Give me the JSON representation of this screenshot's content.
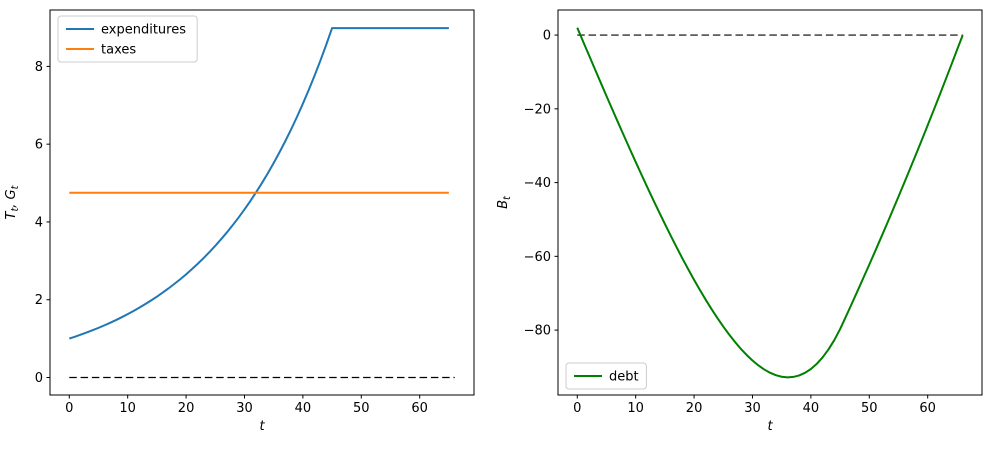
{
  "figure": {
    "background": "#ffffff",
    "plots": 2,
    "title": ""
  },
  "chart_data": [
    {
      "id": "left",
      "type": "line",
      "title": "",
      "xlabel": "t",
      "ylabel": "T_t, G_t",
      "xlabel_segments": [
        {
          "t": "t",
          "s": ""
        }
      ],
      "ylabel_segments": [
        {
          "t": "T",
          "s": "t"
        },
        {
          "t": ", ",
          "s": ""
        },
        {
          "t": "G",
          "s": "t"
        }
      ],
      "xlim": [
        -3.3,
        69.3
      ],
      "ylim": [
        -0.45,
        9.45
      ],
      "xticks": {
        "values": [
          0,
          10,
          20,
          30,
          40,
          50,
          60
        ],
        "labels": [
          "0",
          "10",
          "20",
          "30",
          "40",
          "50",
          "60"
        ]
      },
      "yticks": {
        "values": [
          0,
          2,
          4,
          6,
          8
        ],
        "labels": [
          "0",
          "2",
          "4",
          "6",
          "8"
        ]
      },
      "grid": false,
      "legend": {
        "location": "upper left",
        "entries": [
          {
            "label": "expenditures",
            "color": "#1f77b4"
          },
          {
            "label": "taxes",
            "color": "#ff7f0e"
          }
        ]
      },
      "reference_line": {
        "value": 0,
        "color": "#000000",
        "style": "dashed",
        "x_range": [
          0,
          66
        ]
      },
      "series": [
        {
          "name": "expenditures",
          "color": "#1f77b4",
          "linewidth": 2,
          "x_start": 0,
          "x_step": 1,
          "y": [
            1.0,
            1.05,
            1.103,
            1.158,
            1.216,
            1.276,
            1.34,
            1.407,
            1.477,
            1.551,
            1.629,
            1.71,
            1.796,
            1.886,
            1.98,
            2.079,
            2.183,
            2.292,
            2.407,
            2.527,
            2.653,
            2.786,
            2.925,
            3.072,
            3.225,
            3.386,
            3.556,
            3.733,
            3.92,
            4.116,
            4.322,
            4.538,
            4.765,
            5.003,
            5.253,
            5.516,
            5.792,
            6.081,
            6.385,
            6.705,
            7.04,
            7.392,
            7.762,
            8.15,
            8.557,
            8.985,
            8.985,
            8.985,
            8.985,
            8.985,
            8.985,
            8.985,
            8.985,
            8.985,
            8.985,
            8.985,
            8.985,
            8.985,
            8.985,
            8.985,
            8.985,
            8.985,
            8.985,
            8.985,
            8.985,
            8.985
          ]
        },
        {
          "name": "taxes",
          "color": "#ff7f0e",
          "linewidth": 2,
          "constant_value": 4.752,
          "x_range": [
            0,
            65
          ]
        }
      ]
    },
    {
      "id": "right",
      "type": "line",
      "title": "",
      "xlabel": "t",
      "ylabel": "B_t",
      "xlabel_segments": [
        {
          "t": "t",
          "s": ""
        }
      ],
      "ylabel_segments": [
        {
          "t": "B",
          "s": "t"
        }
      ],
      "xlim": [
        -3.3,
        69.3
      ],
      "ylim": [
        -97.6,
        6.8
      ],
      "xticks": {
        "values": [
          0,
          10,
          20,
          30,
          40,
          50,
          60
        ],
        "labels": [
          "0",
          "10",
          "20",
          "30",
          "40",
          "50",
          "60"
        ]
      },
      "yticks": {
        "values": [
          0,
          -20,
          -40,
          -60,
          -80
        ],
        "labels": [
          "0",
          "−20",
          "−40",
          "−60",
          "−80"
        ]
      },
      "grid": false,
      "legend": {
        "location": "lower left",
        "entries": [
          {
            "label": "debt",
            "color": "#008000"
          }
        ]
      },
      "reference_line": {
        "value": 0,
        "color": "#000000",
        "style": "dashed",
        "x_range": [
          0,
          66
        ]
      },
      "series": [
        {
          "name": "debt",
          "color": "#008000",
          "linewidth": 2,
          "x_start": 0,
          "x_step": 1,
          "y": [
            2.0,
            -1.73,
            -5.45,
            -9.16,
            -12.84,
            -16.51,
            -20.15,
            -23.76,
            -27.34,
            -30.89,
            -34.4,
            -37.87,
            -41.29,
            -44.66,
            -47.97,
            -51.22,
            -54.41,
            -57.52,
            -60.56,
            -63.51,
            -66.37,
            -69.13,
            -71.79,
            -74.33,
            -76.75,
            -79.05,
            -81.2,
            -83.21,
            -85.06,
            -86.75,
            -88.25,
            -89.56,
            -90.67,
            -91.56,
            -92.23,
            -92.65,
            -92.81,
            -92.7,
            -92.3,
            -91.59,
            -90.55,
            -89.17,
            -87.42,
            -85.28,
            -82.74,
            -79.76,
            -76.33,
            -72.86,
            -69.35,
            -65.81,
            -62.24,
            -58.63,
            -54.98,
            -51.3,
            -47.58,
            -43.82,
            -40.02,
            -36.19,
            -32.32,
            -28.41,
            -24.46,
            -20.47,
            -16.44,
            -12.37,
            -8.27,
            -4.11,
            0.0
          ]
        }
      ]
    }
  ]
}
